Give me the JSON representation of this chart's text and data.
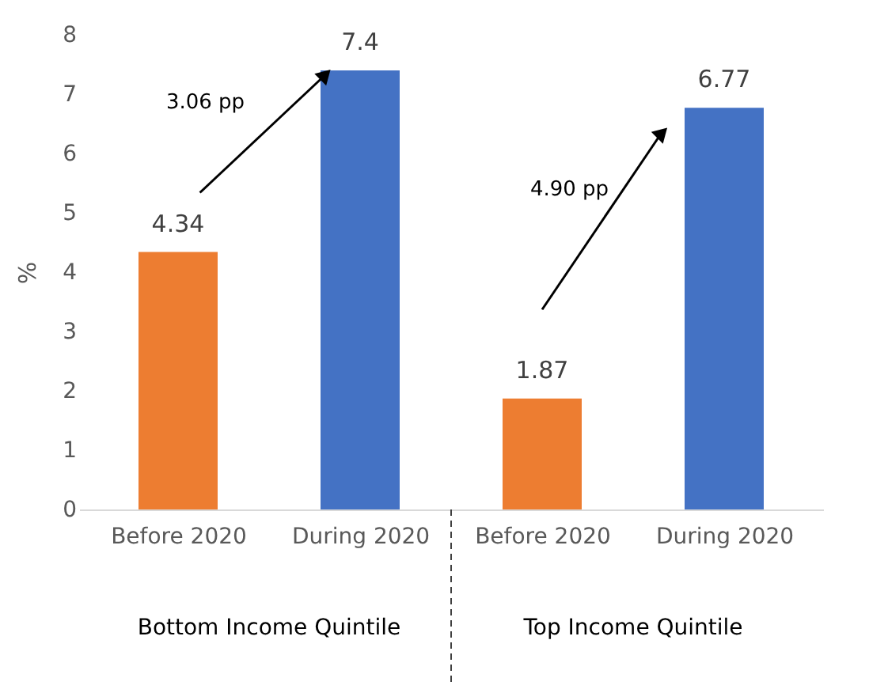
{
  "chart_data": {
    "type": "bar",
    "categories": [
      "Before 2020",
      "During 2020",
      "Before 2020",
      "During 2020"
    ],
    "values": [
      4.34,
      7.4,
      1.87,
      6.77
    ],
    "colors": [
      "#ed7d31",
      "#4472c4",
      "#ed7d31",
      "#4472c4"
    ],
    "ylabel": "%",
    "ylim": [
      0,
      8
    ],
    "yticks": [
      0,
      1,
      2,
      3,
      4,
      5,
      6,
      7,
      8
    ],
    "data_labels": true,
    "grid": false,
    "annotations": [
      "3.06 pp",
      "4.90 pp",
      "Bottom Income Quintile",
      "Top Income Quintile"
    ]
  }
}
